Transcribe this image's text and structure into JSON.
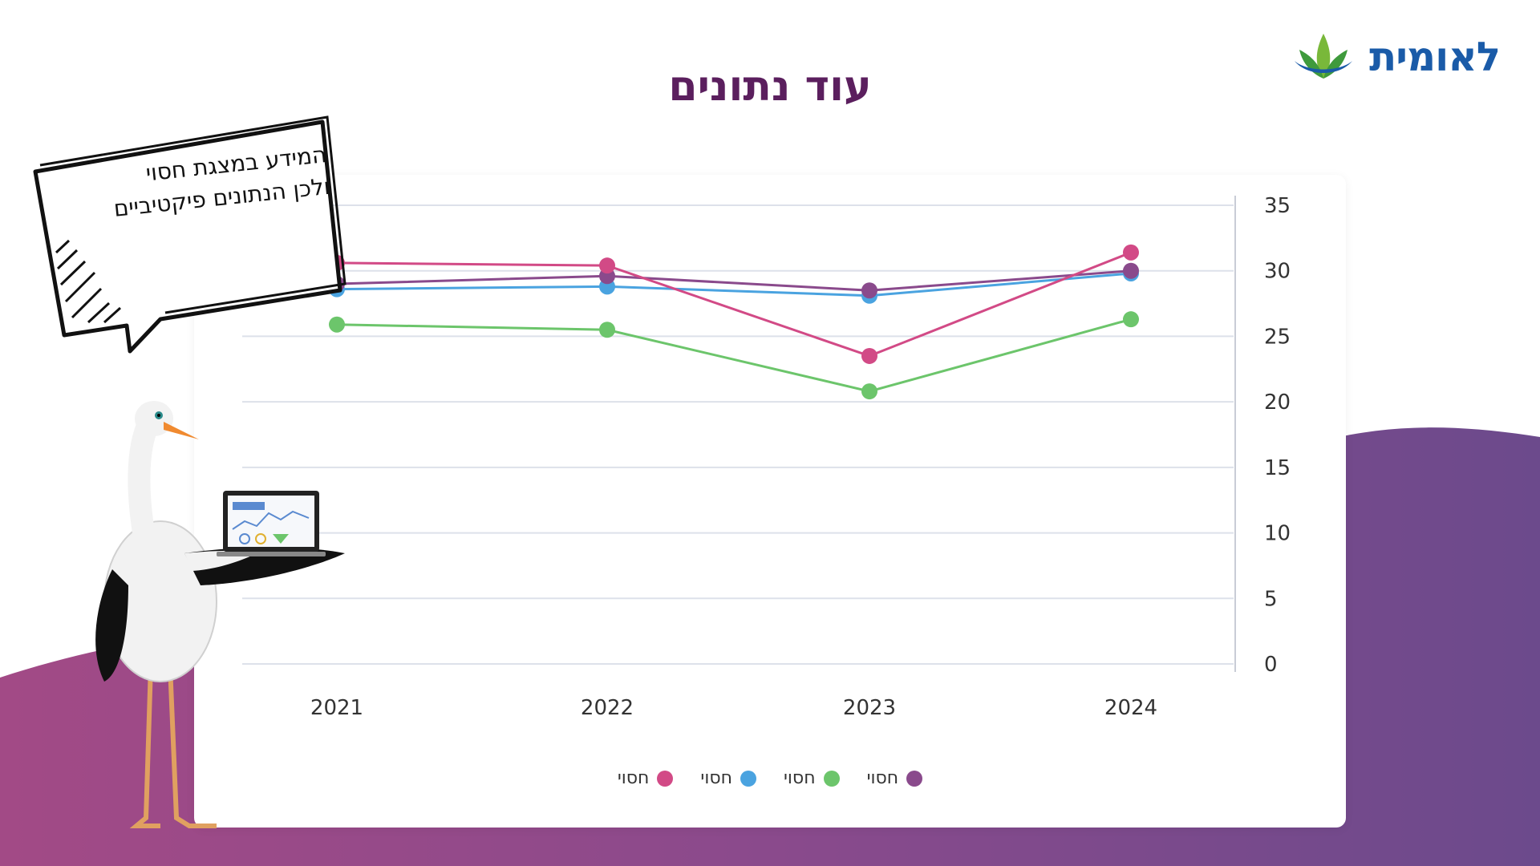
{
  "page_title": "עוד נתונים",
  "logo_text": "לאומית",
  "bubble_text_line1": "המידע במצגת חסוי",
  "bubble_text_line2": "ולכן הנתונים פיקטיביים",
  "colors": {
    "series_pink": "#d24a86",
    "series_blue": "#4aa3e0",
    "series_green": "#6cc56b",
    "series_purple": "#8a4a8c",
    "title": "#5b1f5e",
    "wave": "#7a4a8c"
  },
  "legend": [
    {
      "label": "חסוי",
      "color": "#d24a86"
    },
    {
      "label": "חסוי",
      "color": "#4aa3e0"
    },
    {
      "label": "חסוי",
      "color": "#6cc56b"
    },
    {
      "label": "חסוי",
      "color": "#8a4a8c"
    }
  ],
  "chart_data": {
    "type": "line",
    "x": [
      "2021",
      "2022",
      "2023",
      "2024"
    ],
    "ylim": [
      0,
      35
    ],
    "yticks": [
      0,
      5,
      10,
      15,
      20,
      25,
      30,
      35
    ],
    "y_axis_side": "right",
    "grid": true,
    "legend_position": "bottom",
    "series": [
      {
        "name": "חסוי",
        "color": "#d24a86",
        "values": [
          30.6,
          30.4,
          23.5,
          31.4
        ]
      },
      {
        "name": "חסוי",
        "color": "#4aa3e0",
        "values": [
          28.6,
          28.8,
          28.1,
          29.8
        ]
      },
      {
        "name": "חסוי",
        "color": "#6cc56b",
        "values": [
          25.9,
          25.5,
          20.8,
          26.3
        ]
      },
      {
        "name": "חסוי",
        "color": "#8a4a8c",
        "values": [
          29.0,
          29.6,
          28.5,
          30.0
        ]
      }
    ]
  }
}
